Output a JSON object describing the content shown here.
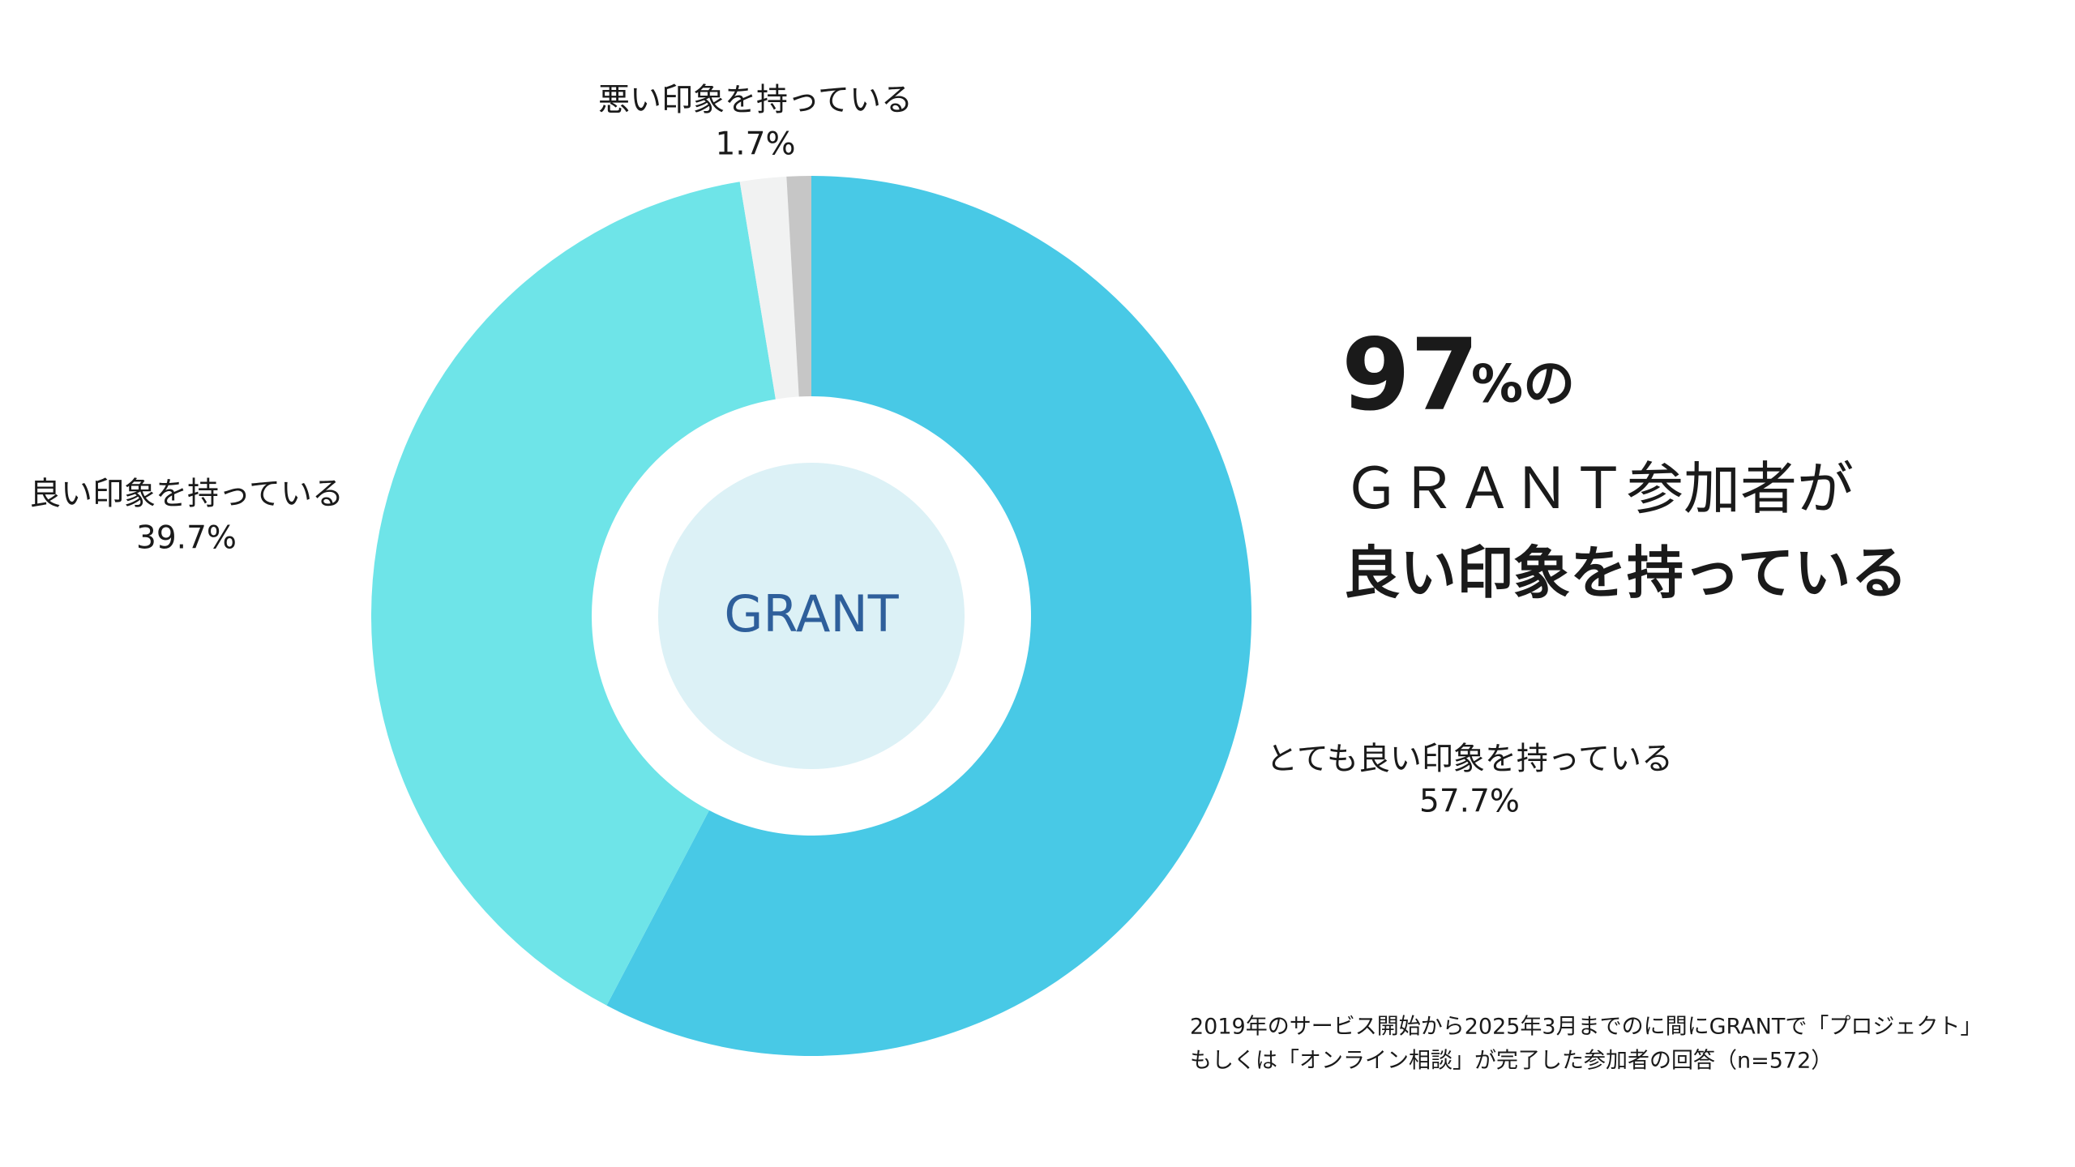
{
  "chart_data": {
    "type": "donut",
    "center_label": "GRANT",
    "categories": [
      "とても良い印象を持っている",
      "良い印象を持っている",
      "悪い印象を持っている",
      null
    ],
    "values": [
      57.7,
      39.7,
      1.7,
      0.9
    ],
    "value_labels": [
      "57.7%",
      "39.7%",
      "1.7%",
      null
    ],
    "colors": [
      "#48c9e6",
      "#6ee4e8",
      "#f1f2f2",
      "#c6c6c6"
    ]
  },
  "headline": {
    "number": "97",
    "suffix": "%の",
    "line1": "ＧＲＡＮＴ参加者が",
    "line2": "良い印象を持っている"
  },
  "footnote": [
    "2019年のサービス開始から2025年3月までのに間にGRANTで「プロジェクト」",
    "もしくは「オンライン相談」が完了した参加者の回答（n=572）"
  ]
}
